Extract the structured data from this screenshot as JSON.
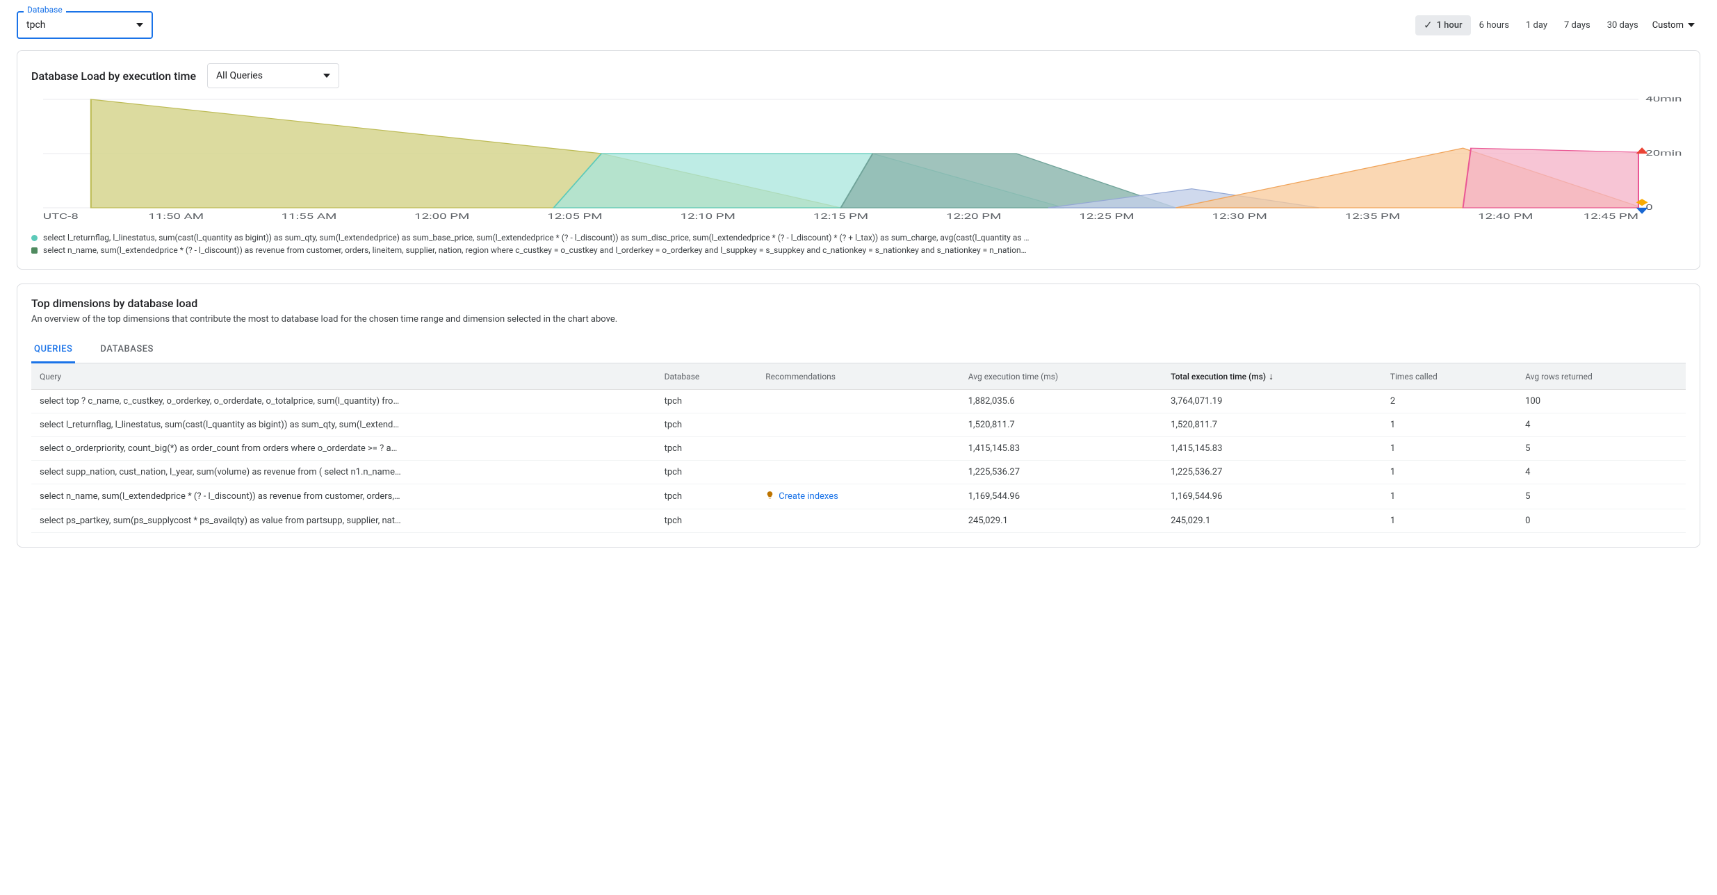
{
  "database_selector": {
    "label": "Database",
    "value": "tpch"
  },
  "time_range": {
    "items": [
      "1 hour",
      "6 hours",
      "1 day",
      "7 days",
      "30 days"
    ],
    "active_index": 0,
    "custom_label": "Custom"
  },
  "load_card": {
    "title": "Database Load by execution time",
    "query_filter": "All Queries",
    "chart": {
      "type": "area",
      "x_labels": [
        "UTC-8",
        "11:50 AM",
        "11:55 AM",
        "12:00 PM",
        "12:05 PM",
        "12:10 PM",
        "12:15 PM",
        "12:20 PM",
        "12:25 PM",
        "12:30 PM",
        "12:35 PM",
        "12:40 PM",
        "12:45 PM"
      ],
      "y_ticks": [
        {
          "v": 0,
          "label": "0"
        },
        {
          "v": 20,
          "label": "20min"
        },
        {
          "v": 40,
          "label": "40min"
        }
      ],
      "ylim": [
        0,
        40
      ],
      "grid_color": "#e8eaed",
      "background_color": "#ffffff",
      "axis_label_color": "#5f6368",
      "axis_fontsize": 11,
      "series": [
        {
          "name": "olive",
          "fill": "#d6d58e",
          "stroke": "#bdbb55",
          "opacity": 0.85,
          "points": [
            [
              0.03,
              40
            ],
            [
              0.35,
              20
            ],
            [
              0.5,
              0
            ]
          ]
        },
        {
          "name": "teal",
          "fill": "#a8e6dc",
          "stroke": "#5ccab9",
          "opacity": 0.75,
          "points": [
            [
              0.32,
              0
            ],
            [
              0.35,
              20
            ],
            [
              0.52,
              20
            ],
            [
              0.64,
              0
            ]
          ]
        },
        {
          "name": "darkteal",
          "fill": "#8fb8b0",
          "stroke": "#6fa399",
          "opacity": 0.85,
          "points": [
            [
              0.5,
              0
            ],
            [
              0.52,
              20
            ],
            [
              0.61,
              20
            ],
            [
              0.71,
              0
            ]
          ]
        },
        {
          "name": "blue",
          "fill": "#c3cfe8",
          "stroke": "#93a7d4",
          "opacity": 0.8,
          "points": [
            [
              0.63,
              0
            ],
            [
              0.72,
              7
            ],
            [
              0.8,
              0
            ]
          ]
        },
        {
          "name": "orange",
          "fill": "#f8c999",
          "stroke": "#f0a45a",
          "opacity": 0.75,
          "points": [
            [
              0.71,
              0
            ],
            [
              0.89,
              22
            ],
            [
              1.0,
              0.5
            ]
          ]
        },
        {
          "name": "pink",
          "fill": "#f4b2c7",
          "stroke": "#ea5794",
          "opacity": 0.75,
          "points": [
            [
              0.89,
              0
            ],
            [
              0.895,
              22
            ],
            [
              1.0,
              20.5
            ]
          ]
        }
      ],
      "markers": [
        {
          "shape": "triangle-up",
          "x": 1.0,
          "y": 21,
          "color": "#ea4335"
        },
        {
          "shape": "diamond",
          "x": 1.0,
          "y": 2,
          "color": "#f9ab00"
        },
        {
          "shape": "triangle-down",
          "x": 1.0,
          "y": -1,
          "color": "#1967d2"
        }
      ]
    },
    "legend": [
      {
        "swatch_color": "#5ccab9",
        "shape": "circle",
        "text": "select l_returnflag, l_linestatus, sum(cast(l_quantity as bigint)) as sum_qty, sum(l_extendedprice) as sum_base_price, sum(l_extendedprice * (? - l_discount)) as sum_disc_price, sum(l_extendedprice * (? - l_discount) * (? + l_tax)) as sum_charge, avg(cast(l_quantity as …"
      },
      {
        "swatch_color": "#4f8a5f",
        "shape": "square",
        "text": "select n_name, sum(l_extendedprice * (? - l_discount)) as revenue from customer, orders, lineitem, supplier, nation, region where c_custkey = o_custkey and l_orderkey = o_orderkey and l_suppkey = s_suppkey and c_nationkey = s_nationkey and s_nationkey = n_nation…"
      }
    ]
  },
  "dimensions_card": {
    "title": "Top dimensions by database load",
    "subtitle": "An overview of the top dimensions that contribute the most to database load for the chosen time range and dimension selected in the chart above.",
    "tabs": [
      "QUERIES",
      "DATABASES"
    ],
    "active_tab": 0,
    "columns": [
      {
        "key": "query",
        "label": "Query"
      },
      {
        "key": "database",
        "label": "Database"
      },
      {
        "key": "recommendations",
        "label": "Recommendations"
      },
      {
        "key": "avg_exec",
        "label": "Avg execution time (ms)"
      },
      {
        "key": "total_exec",
        "label": "Total execution time (ms)",
        "sorted": "desc"
      },
      {
        "key": "times_called",
        "label": "Times called"
      },
      {
        "key": "avg_rows",
        "label": "Avg rows returned"
      }
    ],
    "rows": [
      {
        "query": "select top ? c_name, c_custkey, o_orderkey, o_orderdate, o_totalprice, sum(l_quantity) fro…",
        "database": "tpch",
        "recommendations": "",
        "avg_exec": "1,882,035.6",
        "total_exec": "3,764,071.19",
        "times_called": "2",
        "avg_rows": "100"
      },
      {
        "query": "select l_returnflag, l_linestatus, sum(cast(l_quantity as bigint)) as sum_qty, sum(l_extend…",
        "database": "tpch",
        "recommendations": "",
        "avg_exec": "1,520,811.7",
        "total_exec": "1,520,811.7",
        "times_called": "1",
        "avg_rows": "4"
      },
      {
        "query": "select o_orderpriority, count_big(*) as order_count from orders where o_orderdate >= ? a…",
        "database": "tpch",
        "recommendations": "",
        "avg_exec": "1,415,145.83",
        "total_exec": "1,415,145.83",
        "times_called": "1",
        "avg_rows": "5"
      },
      {
        "query": "select supp_nation, cust_nation, l_year, sum(volume) as revenue from ( select n1.n_name…",
        "database": "tpch",
        "recommendations": "",
        "avg_exec": "1,225,536.27",
        "total_exec": "1,225,536.27",
        "times_called": "1",
        "avg_rows": "4"
      },
      {
        "query": "select n_name, sum(l_extendedprice * (? - l_discount)) as revenue from customer, orders,…",
        "database": "tpch",
        "recommendations": "Create indexes",
        "avg_exec": "1,169,544.96",
        "total_exec": "1,169,544.96",
        "times_called": "1",
        "avg_rows": "5"
      },
      {
        "query": "select ps_partkey, sum(ps_supplycost * ps_availqty) as value from partsupp, supplier, nat…",
        "database": "tpch",
        "recommendations": "",
        "avg_exec": "245,029.1",
        "total_exec": "245,029.1",
        "times_called": "1",
        "avg_rows": "0"
      }
    ],
    "rec_link_color": "#1a73e8"
  }
}
